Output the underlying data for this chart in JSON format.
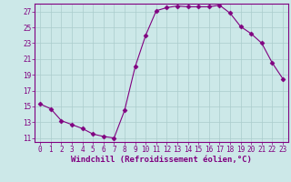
{
  "x": [
    0,
    1,
    2,
    3,
    4,
    5,
    6,
    7,
    8,
    9,
    10,
    11,
    12,
    13,
    14,
    15,
    16,
    17,
    18,
    19,
    20,
    21,
    22,
    23
  ],
  "y": [
    15.3,
    14.7,
    13.2,
    12.7,
    12.2,
    11.5,
    11.2,
    11.0,
    14.5,
    20.0,
    24.0,
    27.1,
    27.5,
    27.7,
    27.6,
    27.6,
    27.6,
    27.8,
    26.8,
    25.1,
    24.2,
    23.0,
    20.5,
    18.5
  ],
  "line_color": "#800080",
  "marker": "D",
  "marker_size": 2.5,
  "bg_color": "#cce8e8",
  "grid_color": "#aacccc",
  "xlabel": "Windchill (Refroidissement éolien,°C)",
  "xlim": [
    -0.5,
    23.5
  ],
  "ylim": [
    10.5,
    28.0
  ],
  "yticks": [
    11,
    13,
    15,
    17,
    19,
    21,
    23,
    25,
    27
  ],
  "xticks": [
    0,
    1,
    2,
    3,
    4,
    5,
    6,
    7,
    8,
    9,
    10,
    11,
    12,
    13,
    14,
    15,
    16,
    17,
    18,
    19,
    20,
    21,
    22,
    23
  ],
  "tick_fontsize": 5.5,
  "xlabel_fontsize": 6.5,
  "tick_color": "#800080",
  "spine_color": "#800080",
  "label_color": "#800080"
}
